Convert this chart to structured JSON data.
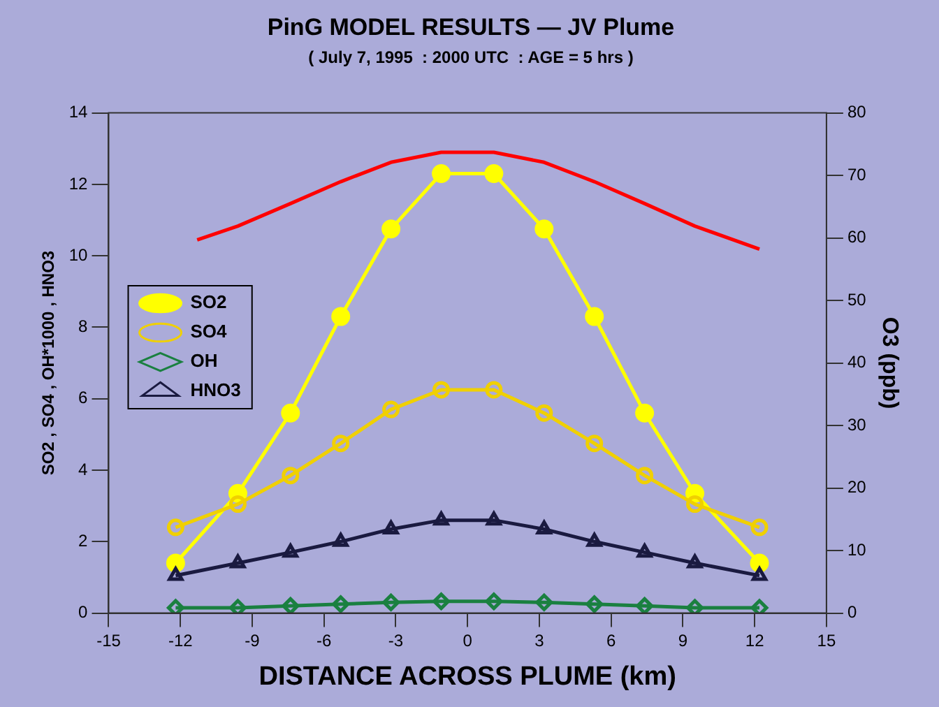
{
  "chart_data": {
    "type": "line",
    "title": "PinG MODEL RESULTS — JV Plume",
    "subtitle": "( July 7, 1995  : 2000 UTC  : AGE = 5 hrs )",
    "xlabel": "DISTANCE ACROSS PLUME (km)",
    "ylabel": "SO2 , SO4 , OH*1000 , HNO3",
    "y2label": "O3 (ppb)",
    "x": [
      -12.2,
      -9.6,
      -7.4,
      -5.3,
      -3.2,
      -1.1,
      1.1,
      3.2,
      5.3,
      7.4,
      9.5,
      12.2
    ],
    "series": [
      {
        "name": "SO2",
        "color": "#ffff00",
        "marker": "circle",
        "values": [
          1.4,
          3.35,
          5.6,
          8.3,
          10.75,
          12.3,
          12.3,
          10.75,
          8.3,
          5.6,
          3.35,
          1.4
        ]
      },
      {
        "name": "SO4",
        "color": "#f0d000",
        "marker": "circle",
        "values": [
          2.4,
          3.05,
          3.85,
          4.75,
          5.7,
          6.25,
          6.25,
          5.6,
          4.75,
          3.85,
          3.05,
          2.4
        ]
      },
      {
        "name": "OH",
        "color": "#1a8040",
        "marker": "diamond",
        "values": [
          0.15,
          0.15,
          0.2,
          0.25,
          0.3,
          0.33,
          0.33,
          0.3,
          0.25,
          0.2,
          0.15,
          0.15
        ]
      },
      {
        "name": "HNO3",
        "color": "#1a1a40",
        "marker": "triangle",
        "values": [
          1.05,
          1.4,
          1.7,
          2.0,
          2.35,
          2.6,
          2.6,
          2.35,
          2.0,
          1.7,
          1.4,
          1.05
        ]
      },
      {
        "color": "#ff0000",
        "marker": "none",
        "axis": "y2",
        "x": [
          -11.3,
          -9.6,
          -7.4,
          -5.3,
          -3.2,
          -1.1,
          1.1,
          3.2,
          5.3,
          7.4,
          9.5,
          12.2
        ],
        "values": [
          59.7,
          61.9,
          65.5,
          69,
          72.1,
          73.7,
          73.7,
          72.1,
          69,
          65.5,
          61.9,
          58.2
        ]
      }
    ],
    "xlim": [
      -15,
      15
    ],
    "xticks": [
      -15,
      -12,
      -9,
      -6,
      -3,
      0,
      3,
      6,
      9,
      12,
      15
    ],
    "ylim": [
      0,
      14
    ],
    "yticks": [
      0,
      2,
      4,
      6,
      8,
      10,
      12,
      14
    ],
    "y2lim": [
      0,
      80
    ],
    "y2ticks": [
      0,
      10,
      20,
      30,
      40,
      50,
      60,
      70,
      80
    ],
    "grid": false,
    "legend": "top left"
  }
}
